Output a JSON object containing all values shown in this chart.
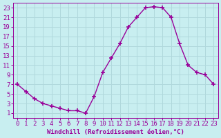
{
  "x": [
    0,
    1,
    2,
    3,
    4,
    5,
    6,
    7,
    8,
    9,
    10,
    11,
    12,
    13,
    14,
    15,
    16,
    17,
    18,
    19,
    20,
    21,
    22,
    23
  ],
  "y": [
    7,
    5.5,
    4,
    3,
    2.5,
    2,
    1.5,
    1.5,
    1,
    4.5,
    9.5,
    12.5,
    15.5,
    19,
    21,
    23,
    23.2,
    23,
    21,
    15.5,
    11,
    9.5,
    9,
    7
  ],
  "line_color": "#990099",
  "marker": "+",
  "marker_size": 4,
  "marker_lw": 1.2,
  "bg_color": "#c8eef0",
  "grid_color": "#b0d8dc",
  "xlabel": "Windchill (Refroidissement éolien,°C)",
  "xlabel_color": "#990099",
  "tick_color": "#990099",
  "xlim": [
    -0.5,
    23.5
  ],
  "ylim": [
    0,
    24
  ],
  "yticks": [
    1,
    3,
    5,
    7,
    9,
    11,
    13,
    15,
    17,
    19,
    21,
    23
  ],
  "xticks": [
    0,
    1,
    2,
    3,
    4,
    5,
    6,
    7,
    8,
    9,
    10,
    11,
    12,
    13,
    14,
    15,
    16,
    17,
    18,
    19,
    20,
    21,
    22,
    23
  ],
  "tick_font_size": 6.5,
  "xlabel_font_size": 6.5,
  "line_width": 1.0
}
